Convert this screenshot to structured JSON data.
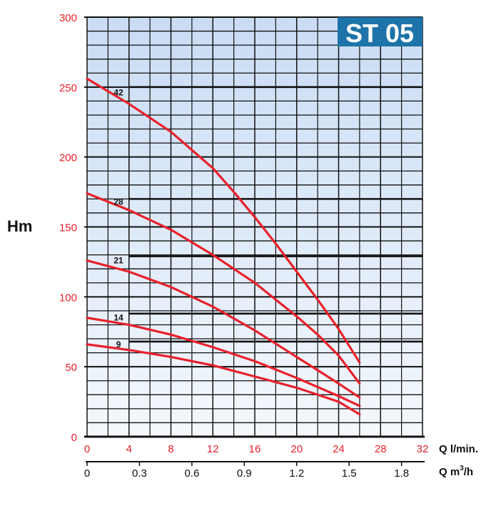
{
  "chart_data": {
    "type": "line",
    "title": "ST 05",
    "ylabel": "Hm",
    "xlabel": "Q l/min.",
    "x2label_prefix": "Q m",
    "x2label_sup": "3",
    "x2label_suffix": "/h",
    "ylim": [
      0,
      300
    ],
    "xlim": [
      0,
      32
    ],
    "x2lim": [
      0,
      1.92
    ],
    "y_ticks": [
      "0",
      "50",
      "100",
      "150",
      "200",
      "250",
      "300"
    ],
    "x_ticks": [
      "0",
      "4",
      "8",
      "12",
      "16",
      "20",
      "24",
      "28",
      "32"
    ],
    "x2_ticks": [
      "0",
      "0.3",
      "0.6",
      "0.9",
      "1.2",
      "1.5",
      "1.8"
    ],
    "grid": true,
    "colors": {
      "curve": "#e8202a",
      "grid": "#111111",
      "badge": "#1e73a8",
      "ticks_primary": "#e8202a"
    },
    "series": [
      {
        "name": "42",
        "x": [
          0,
          4,
          8,
          12,
          14,
          16,
          18,
          20,
          22,
          24,
          26
        ],
        "y": [
          256,
          238,
          218,
          192,
          175,
          157,
          138,
          118,
          98,
          77,
          53
        ]
      },
      {
        "name": "28",
        "x": [
          0,
          4,
          8,
          12,
          16,
          20,
          22,
          24,
          26
        ],
        "y": [
          174,
          162,
          148,
          130,
          110,
          86,
          73,
          58,
          38
        ]
      },
      {
        "name": "21",
        "x": [
          0,
          4,
          8,
          12,
          16,
          20,
          24,
          26
        ],
        "y": [
          126,
          118,
          107,
          93,
          76,
          57,
          38,
          28
        ]
      },
      {
        "name": "14",
        "x": [
          0,
          4,
          8,
          12,
          16,
          20,
          24,
          26
        ],
        "y": [
          85,
          80,
          73,
          64,
          54,
          42,
          29,
          22
        ]
      },
      {
        "name": "9",
        "x": [
          0,
          4,
          8,
          12,
          16,
          20,
          24,
          26
        ],
        "y": [
          66,
          62,
          57,
          51,
          43,
          35,
          25,
          16
        ]
      }
    ]
  }
}
